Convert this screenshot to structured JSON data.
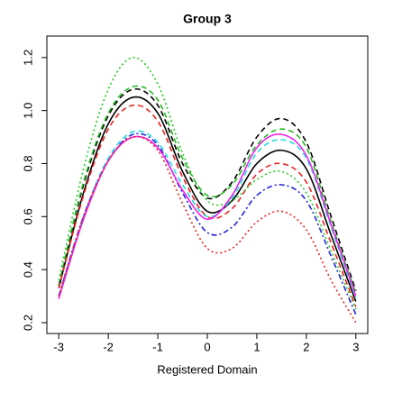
{
  "chart_data": {
    "type": "line",
    "title": "Group 3",
    "x_label": "Registered Domain",
    "x": [
      -3,
      -2.5,
      -2,
      -1.5,
      -1,
      -0.5,
      0,
      0.5,
      1,
      1.5,
      2,
      2.5,
      3
    ],
    "xlim": [
      -3.24,
      3.24
    ],
    "xticks": [
      -3,
      -2,
      -1,
      0,
      1,
      2,
      3
    ],
    "ylim": [
      0.159,
      1.281
    ],
    "yticks": [
      {
        "value": 0.2,
        "label": "0.2"
      },
      {
        "value": 0.4,
        "label": "0.4"
      },
      {
        "value": 0.6,
        "label": "0.6"
      },
      {
        "value": 0.8,
        "label": "0.8"
      },
      {
        "value": 1.0,
        "label": "1.0"
      },
      {
        "value": 1.2,
        "label": "1.2"
      }
    ],
    "series": [
      {
        "color": "#000000",
        "dash": "6,4",
        "values": [
          0.34,
          0.72,
          0.98,
          1.08,
          1.02,
          0.8,
          0.67,
          0.73,
          0.9,
          0.97,
          0.88,
          0.6,
          0.32
        ]
      },
      {
        "color": "#22bb22",
        "dash": "6,4",
        "values": [
          0.34,
          0.73,
          0.99,
          1.09,
          1.04,
          0.82,
          0.68,
          0.72,
          0.87,
          0.93,
          0.86,
          0.58,
          0.31
        ]
      },
      {
        "color": "#000000",
        "dash": "none",
        "values": [
          0.33,
          0.69,
          0.95,
          1.05,
          0.99,
          0.77,
          0.62,
          0.66,
          0.8,
          0.85,
          0.78,
          0.53,
          0.28
        ]
      },
      {
        "color": "#ee2222",
        "dash": "6,4",
        "values": [
          0.33,
          0.68,
          0.93,
          1.02,
          0.96,
          0.75,
          0.6,
          0.63,
          0.76,
          0.8,
          0.73,
          0.5,
          0.26
        ]
      },
      {
        "color": "#22cc22",
        "dash": "2,3",
        "values": [
          0.36,
          0.78,
          1.08,
          1.2,
          1.1,
          0.84,
          0.66,
          0.66,
          0.74,
          0.77,
          0.69,
          0.47,
          0.25
        ]
      },
      {
        "color": "#22dddd",
        "dash": "6,4",
        "values": [
          0.3,
          0.6,
          0.82,
          0.92,
          0.88,
          0.72,
          0.6,
          0.67,
          0.84,
          0.89,
          0.82,
          0.56,
          0.29
        ]
      },
      {
        "color": "#2222dd",
        "dash": "6,3,2,3",
        "values": [
          0.3,
          0.6,
          0.81,
          0.91,
          0.87,
          0.69,
          0.54,
          0.56,
          0.68,
          0.72,
          0.66,
          0.45,
          0.23
        ]
      },
      {
        "color": "#ee22ee",
        "dash": "none",
        "values": [
          0.29,
          0.59,
          0.81,
          0.9,
          0.86,
          0.7,
          0.59,
          0.68,
          0.86,
          0.91,
          0.83,
          0.57,
          0.3
        ]
      },
      {
        "color": "#ee2222",
        "dash": "2,3",
        "values": [
          0.3,
          0.6,
          0.81,
          0.9,
          0.85,
          0.65,
          0.48,
          0.48,
          0.58,
          0.62,
          0.55,
          0.36,
          0.2
        ]
      }
    ]
  }
}
